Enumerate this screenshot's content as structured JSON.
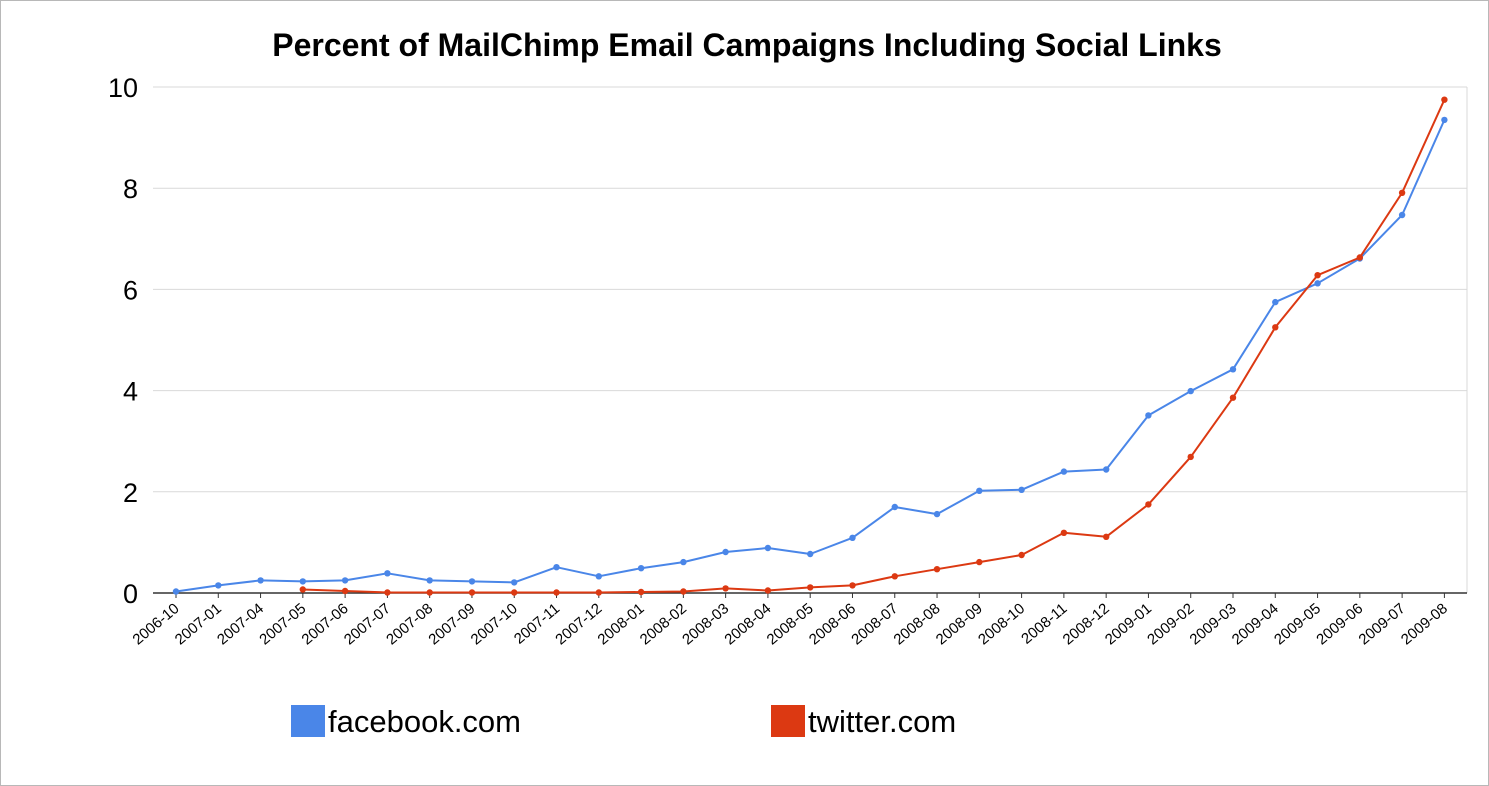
{
  "chart_data": {
    "type": "line",
    "title": "Percent of MailChimp Email Campaigns Including Social Links",
    "xlabel": "",
    "ylabel": "",
    "ylim": [
      0,
      10
    ],
    "yticks": [
      "0",
      "2",
      "4",
      "6",
      "8",
      "10"
    ],
    "grid": true,
    "legend_position": "bottom",
    "categories": [
      "2006-10",
      "2007-01",
      "2007-04",
      "2007-05",
      "2007-06",
      "2007-07",
      "2007-08",
      "2007-09",
      "2007-10",
      "2007-11",
      "2007-12",
      "2008-01",
      "2008-02",
      "2008-03",
      "2008-04",
      "2008-05",
      "2008-06",
      "2008-07",
      "2008-08",
      "2008-09",
      "2008-10",
      "2008-11",
      "2008-12",
      "2009-01",
      "2009-02",
      "2009-03",
      "2009-04",
      "2009-05",
      "2009-06",
      "2009-07",
      "2009-08"
    ],
    "series": [
      {
        "name": "facebook.com",
        "color": "#4a86e8",
        "values": [
          0.03,
          0.15,
          0.25,
          0.23,
          0.25,
          0.39,
          0.25,
          0.23,
          0.21,
          0.51,
          0.33,
          0.49,
          0.61,
          0.81,
          0.89,
          0.77,
          1.09,
          1.7,
          1.56,
          2.02,
          2.04,
          2.4,
          2.44,
          3.51,
          3.99,
          4.42,
          5.75,
          6.12,
          6.61,
          7.47,
          9.35
        ]
      },
      {
        "name": "twitter.com",
        "color": "#dc3912",
        "values": [
          null,
          null,
          null,
          0.07,
          0.04,
          0.01,
          0.01,
          0.01,
          0.01,
          0.01,
          0.01,
          0.02,
          0.03,
          0.09,
          0.05,
          0.11,
          0.15,
          0.33,
          0.47,
          0.61,
          0.75,
          1.19,
          1.11,
          1.75,
          2.69,
          3.86,
          5.25,
          6.28,
          6.63,
          7.91,
          9.75
        ]
      }
    ]
  }
}
